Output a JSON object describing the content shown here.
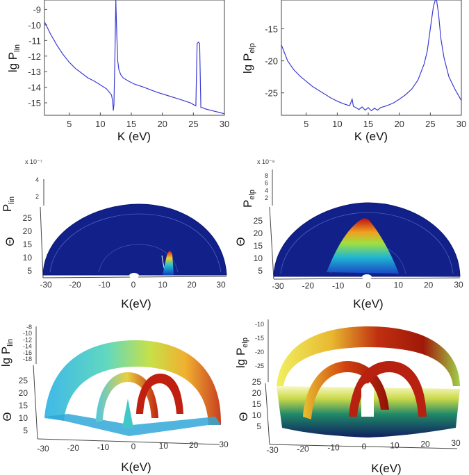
{
  "chart_data": [
    {
      "type": "line",
      "id": "p1",
      "xlabel": "K (eV)",
      "ylabel_main": "lg P",
      "ylabel_sub": "lin",
      "xlim": [
        1,
        30
      ],
      "ylim": [
        -15.8,
        -8.4
      ],
      "xticks": [
        5,
        10,
        15,
        20,
        25,
        30
      ],
      "yticks": [
        -15,
        -14,
        -13,
        -12,
        -11,
        -10,
        -9
      ],
      "series": [
        {
          "name": "lg P_lin",
          "color": "#3b3bd6",
          "x": [
            1,
            2,
            3,
            4,
            5,
            6,
            7,
            8,
            9,
            10,
            11,
            11.8,
            12.0,
            12.1,
            12.2,
            12.35,
            12.5,
            12.65,
            12.8,
            13.0,
            13.3,
            13.7,
            14.5,
            15.5,
            17,
            19,
            21,
            23,
            24.5,
            25.4,
            25.6,
            25.8,
            26.0,
            26.2,
            26.4,
            27,
            28,
            29,
            30
          ],
          "y": [
            -9.8,
            -10.6,
            -11.3,
            -11.9,
            -12.4,
            -12.8,
            -13.1,
            -13.4,
            -13.6,
            -13.85,
            -14.1,
            -14.5,
            -14.9,
            -15.5,
            -15.1,
            -12.0,
            -8.4,
            -10.5,
            -12.3,
            -12.9,
            -13.2,
            -13.4,
            -13.6,
            -13.8,
            -14.0,
            -14.3,
            -14.55,
            -14.8,
            -15.0,
            -15.2,
            -11.2,
            -11.1,
            -11.2,
            -15.3,
            -15.3,
            -15.4,
            -15.5,
            -15.6,
            -15.7
          ]
        }
      ]
    },
    {
      "type": "line",
      "id": "p2",
      "xlabel": "K (eV)",
      "ylabel_main": "lg P",
      "ylabel_sub": "elp",
      "xlim": [
        1,
        30
      ],
      "ylim": [
        -28.5,
        -10.5
      ],
      "xticks": [
        5,
        10,
        15,
        20,
        25,
        30
      ],
      "yticks": [
        -25,
        -20,
        -15
      ],
      "series": [
        {
          "name": "lg P_elp",
          "color": "#3b3bd6",
          "x": [
            1,
            2,
            3,
            4,
            5,
            6,
            7,
            8,
            9,
            10,
            11,
            12,
            12.4,
            12.6,
            13,
            13.5,
            14,
            14.5,
            15,
            15.5,
            16,
            16.5,
            17,
            18,
            19,
            20,
            21,
            22,
            23,
            24,
            24.5,
            25,
            25.5,
            25.8,
            26,
            26.3,
            26.7,
            27.2,
            28,
            29,
            30
          ],
          "y": [
            -17.5,
            -20.0,
            -21.4,
            -22.4,
            -23.2,
            -24.0,
            -24.6,
            -25.2,
            -25.8,
            -26.3,
            -26.7,
            -27.0,
            -26.0,
            -27.1,
            -27.3,
            -27.6,
            -27.2,
            -27.7,
            -27.3,
            -27.8,
            -27.4,
            -27.7,
            -27.3,
            -27.0,
            -26.6,
            -26.0,
            -25.3,
            -24.4,
            -23.0,
            -20.5,
            -18.5,
            -15.0,
            -11.5,
            -10.5,
            -10.5,
            -12.5,
            -16.5,
            -19.5,
            -22.5,
            -24.5,
            -26.2
          ]
        }
      ]
    },
    {
      "type": "surface",
      "id": "p3",
      "xlabel": "K(eV)",
      "zlabel_main": "P",
      "zlabel_sub": "lin",
      "ylabel": "Θ",
      "scale_note": "x 10⁻⁷",
      "xticks": [
        -30,
        -20,
        -10,
        0,
        10,
        20,
        30
      ],
      "yticks": [
        5,
        10,
        15,
        20,
        25
      ],
      "zticks": [
        2,
        4
      ],
      "peak_k": 12,
      "peak_value_scaled": 4
    },
    {
      "type": "surface",
      "id": "p4",
      "xlabel": "K(eV)",
      "zlabel_main": "P",
      "zlabel_sub": "elp",
      "ylabel": "Θ",
      "scale_note": "x 10⁻⁸",
      "xticks": [
        -30,
        -20,
        -10,
        0,
        10,
        20,
        30
      ],
      "yticks": [
        5,
        10,
        15,
        20,
        25
      ],
      "zticks": [
        2,
        4,
        6,
        8
      ],
      "peak_k": -5,
      "peak_value_scaled": 8
    },
    {
      "type": "surface",
      "id": "p5",
      "xlabel": "K(eV)",
      "zlabel_main": "lg P",
      "zlabel_sub": "lin",
      "ylabel": "Θ",
      "xticks": [
        -30,
        -20,
        -10,
        0,
        10,
        20,
        30
      ],
      "yticks": [
        5,
        10,
        15,
        20,
        25
      ],
      "zticks": [
        -8,
        -10,
        -12,
        -14,
        -16,
        -18
      ]
    },
    {
      "type": "surface",
      "id": "p6",
      "xlabel": "K(eV)",
      "zlabel_main": "lg P",
      "zlabel_sub": "elp",
      "ylabel": "Θ",
      "xticks": [
        -30,
        -20,
        -10,
        0,
        10,
        20,
        30
      ],
      "yticks": [
        5,
        10,
        15,
        20,
        25
      ],
      "zticks": [
        -10,
        -15,
        -20,
        -25
      ]
    }
  ]
}
